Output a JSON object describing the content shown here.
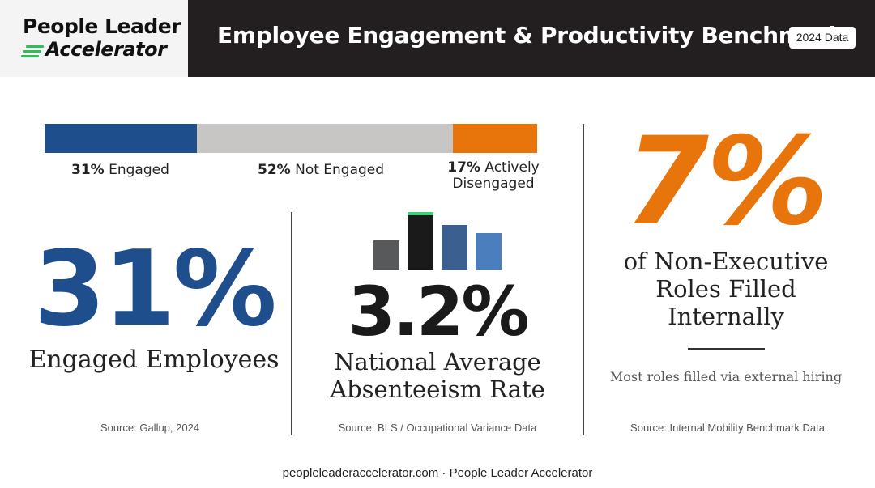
{
  "header": {
    "logo_line1": "People Leader",
    "logo_line2": "Accelerator",
    "title": "Employee Engagement & Productivity Benchmarks",
    "badge": "2024 Data"
  },
  "engagement_bar": {
    "segments": [
      {
        "pct_value": 31,
        "pct_text": "31%",
        "label": "Engaged",
        "color": "#1f4e8c"
      },
      {
        "pct_value": 52,
        "pct_text": "52%",
        "label": "Not Engaged",
        "color": "#c8c6c4"
      },
      {
        "pct_value": 17,
        "pct_text": "17%",
        "label_line1": "Actively",
        "label_line2": "Disengaged",
        "color": "#e8740c"
      }
    ]
  },
  "stats": {
    "engaged": {
      "value": "31%",
      "label": "Engaged Employees",
      "source": "Source: Gallup, 2024",
      "color": "#1f4e8c"
    },
    "absenteeism": {
      "value": "3.2%",
      "label_line1": "National Average",
      "label_line2": "Absenteeism Rate",
      "source": "Source: BLS / Occupational Variance Data",
      "icon": "bar-chart-icon"
    },
    "internal": {
      "value": "7%",
      "label_line1": "of Non-Executive",
      "label_line2": "Roles Filled",
      "label_line3": "Internally",
      "note": "Most roles filled via external hiring",
      "source": "Source: Internal Mobility Benchmark Data",
      "color": "#e8740c"
    }
  },
  "footer": "peopleleaderaccelerator.com · People Leader Accelerator"
}
